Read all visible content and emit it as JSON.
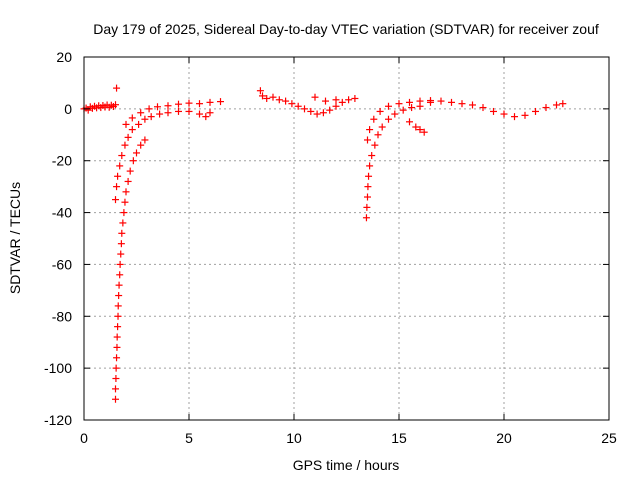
{
  "chart_data": {
    "type": "scatter",
    "title": "Day 179 of 2025, Sidereal Day-to-day VTEC variation (SDTVAR) for receiver zouf",
    "xlabel": "GPS time / hours",
    "ylabel": "SDTVAR / TECUs",
    "xlim": [
      0,
      25
    ],
    "ylim": [
      -120,
      20
    ],
    "x_ticks": [
      0,
      5,
      10,
      15,
      20,
      25
    ],
    "x_tick_labels": [
      "0",
      "5",
      "10",
      "15",
      "20",
      "25"
    ],
    "y_ticks": [
      20,
      0,
      -20,
      -40,
      -60,
      -80,
      -100,
      -120
    ],
    "y_tick_labels": [
      "20",
      "0",
      "-20",
      "-40",
      "-60",
      "-80",
      "-100",
      "-120"
    ],
    "grid": true,
    "marker": "+",
    "series": [
      {
        "name": "SDTVAR",
        "color": "#ff0000",
        "points": [
          [
            0.0,
            0.0
          ],
          [
            0.1,
            0.3
          ],
          [
            0.2,
            -0.5
          ],
          [
            0.3,
            0.8
          ],
          [
            0.4,
            0.2
          ],
          [
            0.5,
            1.0
          ],
          [
            0.6,
            0.4
          ],
          [
            0.7,
            1.2
          ],
          [
            0.8,
            0.5
          ],
          [
            0.9,
            1.3
          ],
          [
            1.0,
            0.7
          ],
          [
            1.1,
            1.5
          ],
          [
            1.2,
            0.6
          ],
          [
            1.3,
            1.4
          ],
          [
            1.4,
            0.9
          ],
          [
            1.5,
            1.6
          ],
          [
            1.55,
            8.0
          ],
          [
            1.5,
            -112.0
          ],
          [
            1.5,
            -108.0
          ],
          [
            1.52,
            -104.0
          ],
          [
            1.53,
            -100.0
          ],
          [
            1.55,
            -96.0
          ],
          [
            1.57,
            -92.0
          ],
          [
            1.58,
            -88.0
          ],
          [
            1.6,
            -84.0
          ],
          [
            1.62,
            -80.0
          ],
          [
            1.63,
            -76.0
          ],
          [
            1.65,
            -72.0
          ],
          [
            1.67,
            -68.0
          ],
          [
            1.7,
            -64.0
          ],
          [
            1.72,
            -60.0
          ],
          [
            1.75,
            -56.0
          ],
          [
            1.78,
            -52.0
          ],
          [
            1.8,
            -48.0
          ],
          [
            1.85,
            -44.0
          ],
          [
            1.9,
            -40.0
          ],
          [
            1.95,
            -36.0
          ],
          [
            2.0,
            -32.0
          ],
          [
            2.1,
            -28.0
          ],
          [
            2.2,
            -24.0
          ],
          [
            2.35,
            -20.0
          ],
          [
            2.5,
            -17.0
          ],
          [
            2.7,
            -14.0
          ],
          [
            2.9,
            -12.0
          ],
          [
            1.5,
            -35.0
          ],
          [
            1.55,
            -30.0
          ],
          [
            1.6,
            -26.0
          ],
          [
            1.7,
            -22.0
          ],
          [
            1.8,
            -18.0
          ],
          [
            1.95,
            -14.0
          ],
          [
            2.1,
            -11.0
          ],
          [
            2.3,
            -8.0
          ],
          [
            2.6,
            -6.0
          ],
          [
            2.9,
            -4.0
          ],
          [
            3.2,
            -3.0
          ],
          [
            3.6,
            -2.0
          ],
          [
            4.0,
            -1.5
          ],
          [
            4.5,
            -1.0
          ],
          [
            2.0,
            -6.0
          ],
          [
            2.3,
            -3.5
          ],
          [
            2.7,
            -1.5
          ],
          [
            3.1,
            0.0
          ],
          [
            3.5,
            0.8
          ],
          [
            4.0,
            1.2
          ],
          [
            4.5,
            1.8
          ],
          [
            5.0,
            2.2
          ],
          [
            5.5,
            2.0
          ],
          [
            6.0,
            2.5
          ],
          [
            6.5,
            2.8
          ],
          [
            5.0,
            -1.0
          ],
          [
            5.5,
            -2.0
          ],
          [
            5.8,
            -3.0
          ],
          [
            6.0,
            -1.5
          ],
          [
            8.4,
            7.0
          ],
          [
            8.5,
            5.0
          ],
          [
            8.7,
            4.0
          ],
          [
            9.0,
            4.5
          ],
          [
            9.3,
            3.5
          ],
          [
            9.6,
            3.0
          ],
          [
            9.9,
            2.0
          ],
          [
            10.2,
            1.0
          ],
          [
            10.5,
            0.0
          ],
          [
            10.8,
            -1.0
          ],
          [
            11.1,
            -2.0
          ],
          [
            11.4,
            -1.5
          ],
          [
            11.7,
            -0.5
          ],
          [
            12.0,
            1.0
          ],
          [
            12.3,
            2.5
          ],
          [
            12.6,
            3.5
          ],
          [
            12.9,
            4.0
          ],
          [
            11.0,
            4.5
          ],
          [
            11.5,
            3.0
          ],
          [
            12.0,
            3.5
          ],
          [
            13.45,
            -42.0
          ],
          [
            13.47,
            -38.0
          ],
          [
            13.5,
            -34.0
          ],
          [
            13.52,
            -30.0
          ],
          [
            13.55,
            -26.0
          ],
          [
            13.6,
            -22.0
          ],
          [
            13.7,
            -18.0
          ],
          [
            13.85,
            -14.0
          ],
          [
            14.0,
            -10.0
          ],
          [
            14.2,
            -7.0
          ],
          [
            14.5,
            -4.0
          ],
          [
            14.8,
            -2.0
          ],
          [
            15.2,
            -0.5
          ],
          [
            15.6,
            0.5
          ],
          [
            16.0,
            1.0
          ],
          [
            13.5,
            -12.0
          ],
          [
            13.6,
            -8.0
          ],
          [
            13.8,
            -4.0
          ],
          [
            14.1,
            -1.0
          ],
          [
            14.5,
            1.0
          ],
          [
            15.0,
            2.0
          ],
          [
            15.5,
            2.5
          ],
          [
            16.0,
            3.0
          ],
          [
            16.5,
            3.2
          ],
          [
            15.5,
            -5.0
          ],
          [
            15.8,
            -7.0
          ],
          [
            16.0,
            -8.0
          ],
          [
            16.2,
            -9.0
          ],
          [
            16.5,
            2.5
          ],
          [
            17.0,
            3.0
          ],
          [
            17.5,
            2.5
          ],
          [
            18.0,
            2.0
          ],
          [
            18.5,
            1.5
          ],
          [
            19.0,
            0.5
          ],
          [
            19.5,
            -1.0
          ],
          [
            20.0,
            -2.0
          ],
          [
            20.5,
            -3.0
          ],
          [
            21.0,
            -2.5
          ],
          [
            21.5,
            -1.0
          ],
          [
            22.0,
            0.5
          ],
          [
            22.5,
            1.5
          ],
          [
            22.8,
            2.0
          ]
        ]
      }
    ]
  }
}
